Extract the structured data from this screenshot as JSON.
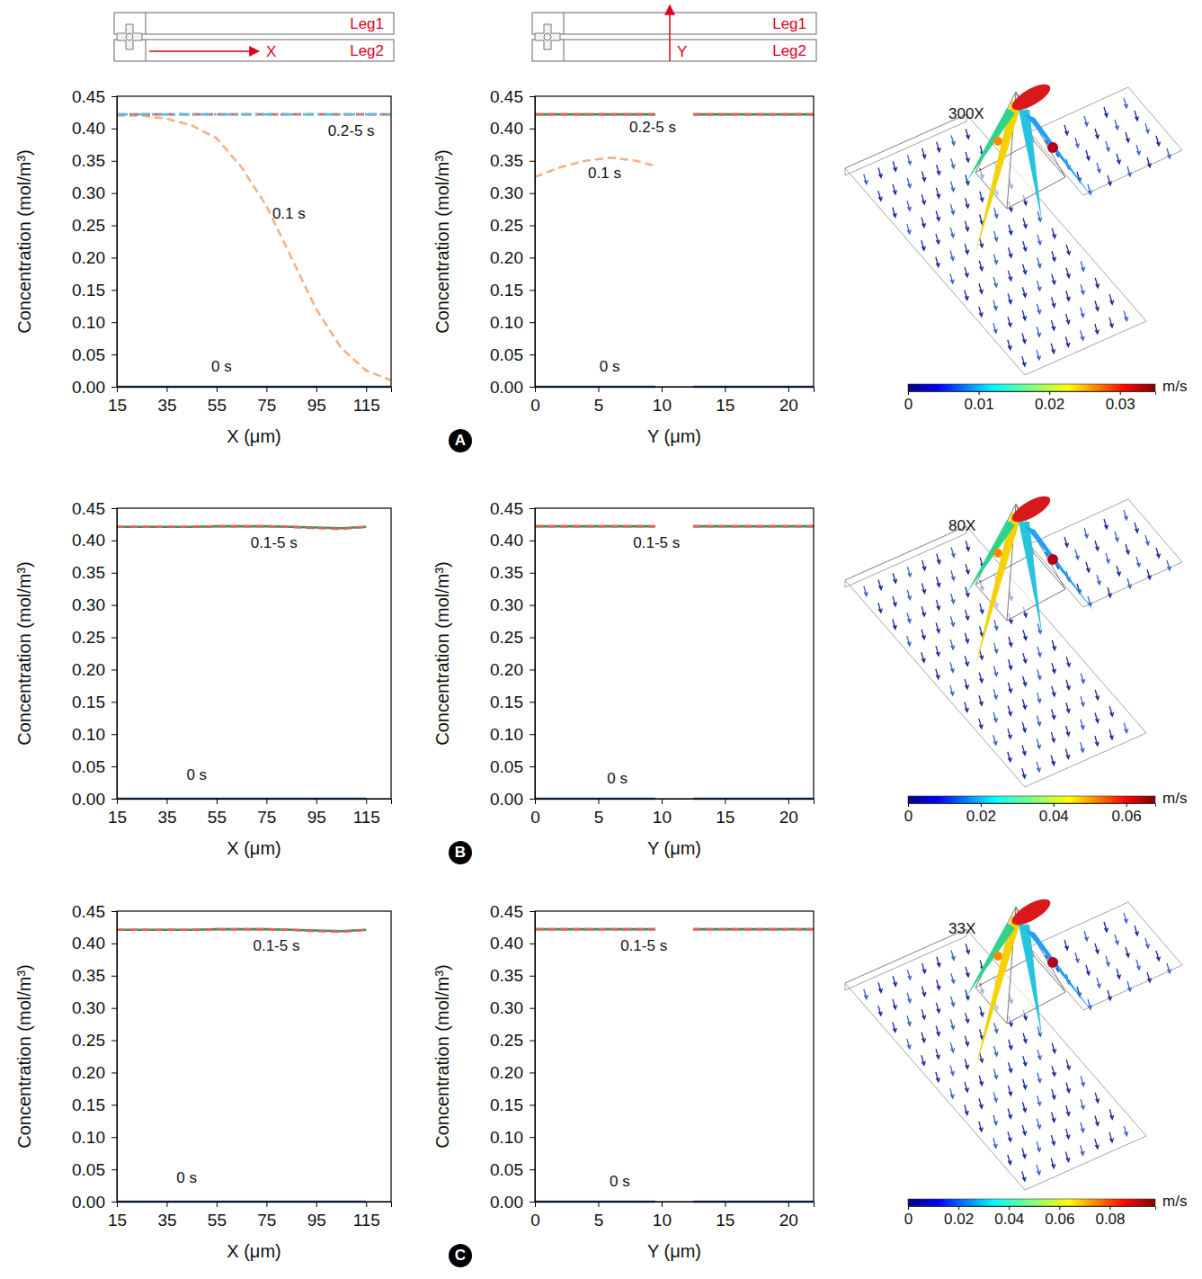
{
  "panels": [
    "A",
    "B",
    "C"
  ],
  "schematics": [
    {
      "labels": [
        "Leg1",
        "Leg2"
      ],
      "axis_label": "X"
    },
    {
      "labels": [
        "Leg1",
        "Leg2"
      ],
      "axis_label": "Y"
    }
  ],
  "chart_data": [
    {
      "type": "line",
      "x_label": "X (μm)",
      "y_label": "Concentration (mol/m³)",
      "xlim": [
        15,
        125
      ],
      "xticks": [
        15,
        35,
        55,
        75,
        95,
        115
      ],
      "ylim": [
        0,
        0.45
      ],
      "yticks": [
        {
          "value": 0,
          "label": "0.00"
        },
        0.05,
        {
          "value": 0.1,
          "label": "0.10"
        },
        0.15,
        {
          "value": 0.2,
          "label": "0.20"
        },
        0.25,
        {
          "value": 0.3,
          "label": "0.30"
        },
        0.35,
        {
          "value": 0.4,
          "label": "0.40"
        },
        0.45
      ],
      "x": [
        15,
        25,
        35,
        45,
        55,
        65,
        75,
        85,
        95,
        105,
        115,
        125
      ],
      "series": [
        {
          "color": "#3b6cb0",
          "line_style": "solid",
          "values": [
            0,
            0,
            0,
            0,
            0,
            0,
            0,
            0,
            0,
            0,
            0,
            0
          ]
        },
        {
          "color": "#f4b183",
          "line_style": "dashed",
          "values": [
            0.42,
            0.42,
            0.415,
            0.405,
            0.385,
            0.34,
            0.28,
            0.2,
            0.12,
            0.06,
            0.025,
            0.01
          ]
        },
        {
          "color": "#e0625a",
          "line_style": "dashed",
          "values": [
            0.422,
            0.422,
            0.422,
            0.422,
            0.422,
            0.422,
            0.422,
            0.422,
            0.422,
            0.422,
            0.422,
            0.422
          ]
        },
        {
          "color": "#5bc0de",
          "line_style": "dashdot",
          "values": [
            0.422,
            0.422,
            0.422,
            0.422,
            0.422,
            0.422,
            0.422,
            0.422,
            0.422,
            0.422,
            0.422,
            0.422
          ]
        }
      ],
      "annotations": [
        {
          "text": "0.2-5 s",
          "x": 109,
          "y": 0.395
        },
        {
          "text": "0.1 s",
          "x": 84,
          "y": 0.267
        },
        {
          "text": "0 s",
          "x": 57,
          "y": 0.03
        }
      ]
    },
    {
      "type": "line",
      "x_label": "Y (μm)",
      "y_label": "Concentration (mol/m³)",
      "xlim": [
        0,
        22
      ],
      "xticks": [
        0,
        5,
        10,
        15,
        20
      ],
      "ylim": [
        0,
        0.45
      ],
      "yticks": [
        {
          "value": 0,
          "label": "0.00"
        },
        0.05,
        {
          "value": 0.1,
          "label": "0.10"
        },
        0.15,
        {
          "value": 0.2,
          "label": "0.20"
        },
        0.25,
        {
          "value": 0.3,
          "label": "0.30"
        },
        0.35,
        {
          "value": 0.4,
          "label": "0.40"
        },
        0.45
      ],
      "x": [
        0,
        2,
        4,
        6,
        8,
        9.5,
        11,
        12.5,
        14,
        16,
        18,
        20,
        22
      ],
      "series": [
        {
          "color": "#3b6cb0",
          "line_style": "solid",
          "values": [
            0,
            0,
            0,
            0,
            0,
            0,
            null,
            0,
            0,
            0,
            0,
            0,
            0
          ]
        },
        {
          "color": "#f4b183",
          "line_style": "dashed",
          "values": [
            0.325,
            0.34,
            0.35,
            0.355,
            0.35,
            0.342,
            null,
            null,
            null,
            null,
            null,
            null,
            null
          ]
        },
        {
          "color": "#3a8f5c",
          "line_style": "solid",
          "values": [
            0.422,
            0.422,
            0.422,
            0.422,
            0.422,
            0.422,
            null,
            0.422,
            0.422,
            0.422,
            0.422,
            0.422,
            0.422
          ]
        },
        {
          "color": "#e0625a",
          "line_style": "dashed",
          "values": [
            0.422,
            0.422,
            0.422,
            0.422,
            0.422,
            0.422,
            null,
            0.422,
            0.422,
            0.422,
            0.422,
            0.422,
            0.422
          ]
        }
      ],
      "annotations": [
        {
          "text": "0.2-5 s",
          "x": 9.3,
          "y": 0.4
        },
        {
          "text": "0.1 s",
          "x": 5.5,
          "y": 0.33
        },
        {
          "text": "0 s",
          "x": 5.9,
          "y": 0.03
        }
      ]
    },
    {
      "type": "line",
      "x_label": "X (μm)",
      "y_label": "Concentration (mol/m³)",
      "xlim": [
        15,
        125
      ],
      "xticks": [
        15,
        35,
        55,
        75,
        95,
        115
      ],
      "ylim": [
        0,
        0.45
      ],
      "yticks": [
        {
          "value": 0,
          "label": "0.00"
        },
        0.05,
        {
          "value": 0.1,
          "label": "0.10"
        },
        0.15,
        {
          "value": 0.2,
          "label": "0.20"
        },
        0.25,
        {
          "value": 0.3,
          "label": "0.30"
        },
        0.35,
        {
          "value": 0.4,
          "label": "0.40"
        },
        0.45
      ],
      "x": [
        15,
        25,
        35,
        45,
        55,
        65,
        75,
        85,
        95,
        105,
        115
      ],
      "series": [
        {
          "color": "#3b6cb0",
          "line_style": "solid",
          "values": [
            0,
            0,
            0,
            0,
            0,
            0,
            0,
            0,
            0,
            0,
            0
          ]
        },
        {
          "color": "#3a8f5c",
          "line_style": "solid",
          "values": [
            0.421,
            0.421,
            0.421,
            0.421,
            0.422,
            0.422,
            0.422,
            0.421,
            0.42,
            0.419,
            0.421
          ]
        },
        {
          "color": "#e0625a",
          "line_style": "dashed",
          "values": [
            0.421,
            0.421,
            0.421,
            0.421,
            0.422,
            0.422,
            0.422,
            0.421,
            0.419,
            0.418,
            0.421
          ]
        }
      ],
      "annotations": [
        {
          "text": "0.1-5 s",
          "x": 78,
          "y": 0.395
        },
        {
          "text": "0 s",
          "x": 47,
          "y": 0.035
        }
      ]
    },
    {
      "type": "line",
      "x_label": "Y (μm)",
      "y_label": "Concentration (mol/m³)",
      "xlim": [
        0,
        22
      ],
      "xticks": [
        0,
        5,
        10,
        15,
        20
      ],
      "ylim": [
        0,
        0.45
      ],
      "yticks": [
        {
          "value": 0,
          "label": "0.00"
        },
        0.05,
        {
          "value": 0.1,
          "label": "0.10"
        },
        0.15,
        {
          "value": 0.2,
          "label": "0.20"
        },
        0.25,
        {
          "value": 0.3,
          "label": "0.30"
        },
        0.35,
        {
          "value": 0.4,
          "label": "0.40"
        },
        0.45
      ],
      "x": [
        0,
        2,
        4,
        6,
        8,
        9.5,
        11,
        12.5,
        14,
        16,
        18,
        20,
        22
      ],
      "series": [
        {
          "color": "#3b6cb0",
          "line_style": "solid",
          "values": [
            0,
            0,
            0,
            0,
            0,
            0,
            null,
            0,
            0,
            0,
            0,
            0,
            0
          ]
        },
        {
          "color": "#3a8f5c",
          "line_style": "solid",
          "values": [
            0.422,
            0.422,
            0.422,
            0.422,
            0.422,
            0.422,
            null,
            0.422,
            0.422,
            0.422,
            0.422,
            0.422,
            0.422
          ]
        },
        {
          "color": "#e0625a",
          "line_style": "dashed",
          "values": [
            0.422,
            0.422,
            0.422,
            0.422,
            0.422,
            0.422,
            null,
            0.422,
            0.422,
            0.422,
            0.422,
            0.422,
            0.422
          ]
        }
      ],
      "annotations": [
        {
          "text": "0.1-5 s",
          "x": 9.6,
          "y": 0.395
        },
        {
          "text": "0 s",
          "x": 6.5,
          "y": 0.03
        }
      ]
    },
    {
      "type": "line",
      "x_label": "X (μm)",
      "y_label": "Concentration (mol/m³)",
      "xlim": [
        15,
        125
      ],
      "xticks": [
        15,
        35,
        55,
        75,
        95,
        115
      ],
      "ylim": [
        0,
        0.45
      ],
      "yticks": [
        {
          "value": 0,
          "label": "0.00"
        },
        0.05,
        {
          "value": 0.1,
          "label": "0.10"
        },
        0.15,
        {
          "value": 0.2,
          "label": "0.20"
        },
        0.25,
        {
          "value": 0.3,
          "label": "0.30"
        },
        0.35,
        {
          "value": 0.4,
          "label": "0.40"
        },
        0.45
      ],
      "x": [
        15,
        25,
        35,
        45,
        55,
        65,
        75,
        85,
        95,
        105,
        115
      ],
      "series": [
        {
          "color": "#3b6cb0",
          "line_style": "solid",
          "values": [
            0,
            0,
            0,
            0,
            0,
            0,
            0,
            0,
            0,
            0,
            0
          ]
        },
        {
          "color": "#3a8f5c",
          "line_style": "solid",
          "values": [
            0.421,
            0.421,
            0.421,
            0.421,
            0.422,
            0.422,
            0.422,
            0.421,
            0.42,
            0.419,
            0.421
          ]
        },
        {
          "color": "#e0625a",
          "line_style": "dashed",
          "values": [
            0.421,
            0.421,
            0.421,
            0.421,
            0.422,
            0.422,
            0.422,
            0.421,
            0.419,
            0.418,
            0.421
          ]
        }
      ],
      "annotations": [
        {
          "text": "0.1-5 s",
          "x": 79,
          "y": 0.395
        },
        {
          "text": "0 s",
          "x": 43,
          "y": 0.035
        }
      ]
    },
    {
      "type": "line",
      "x_label": "Y (μm)",
      "y_label": "Concentration (mol/m³)",
      "xlim": [
        0,
        22
      ],
      "xticks": [
        0,
        5,
        10,
        15,
        20
      ],
      "ylim": [
        0,
        0.45
      ],
      "yticks": [
        {
          "value": 0,
          "label": "0.00"
        },
        0.05,
        {
          "value": 0.1,
          "label": "0.10"
        },
        0.15,
        {
          "value": 0.2,
          "label": "0.20"
        },
        0.25,
        {
          "value": 0.3,
          "label": "0.30"
        },
        0.35,
        {
          "value": 0.4,
          "label": "0.40"
        },
        0.45
      ],
      "x": [
        0,
        2,
        4,
        6,
        8,
        9.5,
        11,
        12.5,
        14,
        16,
        18,
        20,
        22
      ],
      "series": [
        {
          "color": "#3b6cb0",
          "line_style": "solid",
          "values": [
            0,
            0,
            0,
            0,
            0,
            0,
            null,
            0,
            0,
            0,
            0,
            0,
            0
          ]
        },
        {
          "color": "#3a8f5c",
          "line_style": "solid",
          "values": [
            0.422,
            0.422,
            0.422,
            0.422,
            0.422,
            0.422,
            null,
            0.422,
            0.422,
            0.422,
            0.422,
            0.422,
            0.422
          ]
        },
        {
          "color": "#e0625a",
          "line_style": "dashed",
          "values": [
            0.422,
            0.422,
            0.422,
            0.422,
            0.422,
            0.422,
            null,
            0.422,
            0.422,
            0.422,
            0.422,
            0.422,
            0.422
          ]
        }
      ],
      "annotations": [
        {
          "text": "0.1-5 s",
          "x": 8.6,
          "y": 0.395
        },
        {
          "text": "0 s",
          "x": 6.7,
          "y": 0.03
        }
      ]
    }
  ],
  "flow_fields": [
    {
      "label": "300X",
      "colorbar": {
        "range": [
          0,
          0.035
        ],
        "ticks": [
          0,
          0.01,
          0.02,
          0.03
        ],
        "label": "m/s"
      }
    },
    {
      "label": "80X",
      "colorbar": {
        "range": [
          0,
          0.068
        ],
        "ticks": [
          0,
          0.02,
          0.04,
          0.06
        ],
        "label": "m/s"
      }
    },
    {
      "label": "33X",
      "colorbar": {
        "range": [
          0,
          0.098
        ],
        "ticks": [
          0,
          0.02,
          0.04,
          0.06,
          0.08
        ],
        "label": "m/s"
      }
    }
  ]
}
